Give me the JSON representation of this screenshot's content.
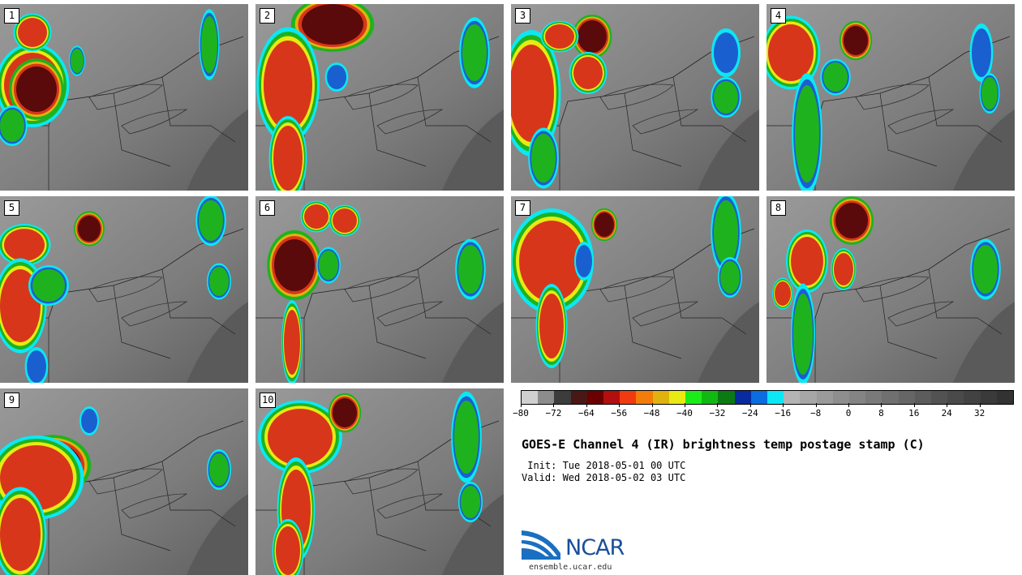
{
  "panels": [
    {
      "label": "1",
      "storms": [
        [
          40,
          100,
          35,
          40,
          "red"
        ],
        [
          45,
          105,
          25,
          28,
          "maroon"
        ],
        [
          40,
          35,
          18,
          18,
          "red"
        ],
        [
          15,
          150,
          15,
          20,
          "green"
        ],
        [
          258,
          50,
          10,
          35,
          "green"
        ],
        [
          95,
          70,
          8,
          15,
          "green"
        ]
      ]
    },
    {
      "label": "2",
      "storms": [
        [
          95,
          25,
          38,
          25,
          "maroon"
        ],
        [
          40,
          100,
          30,
          55,
          "red"
        ],
        [
          40,
          190,
          18,
          40,
          "red"
        ],
        [
          270,
          60,
          15,
          35,
          "green"
        ],
        [
          100,
          90,
          12,
          15,
          "blue"
        ]
      ]
    },
    {
      "label": "3",
      "storms": [
        [
          25,
          110,
          28,
          60,
          "red"
        ],
        [
          100,
          40,
          18,
          20,
          "maroon"
        ],
        [
          60,
          40,
          18,
          15,
          "red"
        ],
        [
          95,
          85,
          18,
          20,
          "red"
        ],
        [
          265,
          60,
          15,
          25,
          "blue"
        ],
        [
          265,
          115,
          15,
          20,
          "green"
        ],
        [
          40,
          190,
          15,
          30,
          "green"
        ]
      ]
    },
    {
      "label": "4",
      "storms": [
        [
          30,
          60,
          28,
          35,
          "red"
        ],
        [
          110,
          45,
          15,
          18,
          "maroon"
        ],
        [
          50,
          160,
          15,
          60,
          "green"
        ],
        [
          85,
          90,
          15,
          18,
          "green"
        ],
        [
          265,
          60,
          12,
          30,
          "blue"
        ],
        [
          275,
          110,
          10,
          20,
          "green"
        ]
      ]
    },
    {
      "label": "5",
      "storms": [
        [
          30,
          60,
          25,
          20,
          "red"
        ],
        [
          110,
          40,
          14,
          16,
          "maroon"
        ],
        [
          25,
          135,
          25,
          45,
          "red"
        ],
        [
          60,
          110,
          20,
          20,
          "green"
        ],
        [
          260,
          30,
          15,
          25,
          "green"
        ],
        [
          270,
          105,
          12,
          18,
          "green"
        ],
        [
          45,
          210,
          12,
          20,
          "blue"
        ]
      ]
    },
    {
      "label": "6",
      "storms": [
        [
          48,
          85,
          25,
          32,
          "maroon"
        ],
        [
          75,
          25,
          15,
          15,
          "red"
        ],
        [
          110,
          30,
          15,
          15,
          "red"
        ],
        [
          45,
          180,
          10,
          40,
          "red"
        ],
        [
          265,
          90,
          15,
          30,
          "green"
        ],
        [
          90,
          85,
          12,
          18,
          "green"
        ]
      ]
    },
    {
      "label": "7",
      "storms": [
        [
          50,
          80,
          40,
          50,
          "red"
        ],
        [
          115,
          35,
          12,
          15,
          "maroon"
        ],
        [
          50,
          160,
          15,
          40,
          "red"
        ],
        [
          265,
          45,
          15,
          40,
          "green"
        ],
        [
          270,
          100,
          12,
          20,
          "green"
        ],
        [
          90,
          80,
          10,
          20,
          "blue"
        ]
      ]
    },
    {
      "label": "8",
      "storms": [
        [
          105,
          30,
          20,
          22,
          "maroon"
        ],
        [
          50,
          80,
          20,
          30,
          "red"
        ],
        [
          45,
          170,
          12,
          50,
          "green"
        ],
        [
          95,
          90,
          12,
          20,
          "red"
        ],
        [
          270,
          90,
          15,
          30,
          "green"
        ],
        [
          20,
          120,
          10,
          15,
          "red"
        ]
      ]
    },
    {
      "label": "9",
      "storms": [
        [
          65,
          95,
          35,
          28,
          "maroon"
        ],
        [
          45,
          110,
          45,
          40,
          "red"
        ],
        [
          25,
          180,
          25,
          45,
          "red"
        ],
        [
          270,
          100,
          12,
          20,
          "green"
        ],
        [
          110,
          40,
          10,
          15,
          "blue"
        ]
      ]
    },
    {
      "label": "10",
      "storms": [
        [
          55,
          60,
          40,
          35,
          "red"
        ],
        [
          110,
          30,
          15,
          18,
          "maroon"
        ],
        [
          50,
          150,
          18,
          50,
          "red"
        ],
        [
          40,
          200,
          15,
          30,
          "red"
        ],
        [
          260,
          60,
          15,
          45,
          "green"
        ],
        [
          265,
          140,
          12,
          20,
          "green"
        ]
      ]
    }
  ],
  "colorbar": {
    "colors": [
      "#cfcfcf",
      "#8c8c8c",
      "#3c3c3c",
      "#4a1717",
      "#6b0000",
      "#b20f0f",
      "#f23a10",
      "#f47c0a",
      "#e0b20e",
      "#e8ea12",
      "#1aec1a",
      "#12b812",
      "#0b7a12",
      "#0a2aa0",
      "#0a6de0",
      "#0be8f4",
      "#b4b4b4",
      "#a6a6a6",
      "#9a9a9a",
      "#8e8e8e",
      "#848484",
      "#7a7a7a",
      "#707070",
      "#666666",
      "#5c5c5c",
      "#525252",
      "#4a4a4a",
      "#424242",
      "#3a3a3a",
      "#323232"
    ],
    "tick_labels": [
      "−80",
      "−72",
      "−64",
      "−56",
      "−48",
      "−40",
      "−32",
      "−24",
      "−16",
      "−8",
      "0",
      "8",
      "16",
      "24",
      "32"
    ]
  },
  "title": "GOES-E Channel 4 (IR) brightness temp postage stamp (C)",
  "init_line": " Init: Tue 2018-05-01 00 UTC",
  "valid_line": "Valid: Wed 2018-05-02 03 UTC",
  "logo": {
    "text": "NCAR",
    "url": "ensemble.ucar.edu"
  },
  "storm_colors": {
    "maroon": "#5a0a0a",
    "red": "#d8361a",
    "green": "#1fb21f",
    "blue": "#1a5fd0"
  }
}
